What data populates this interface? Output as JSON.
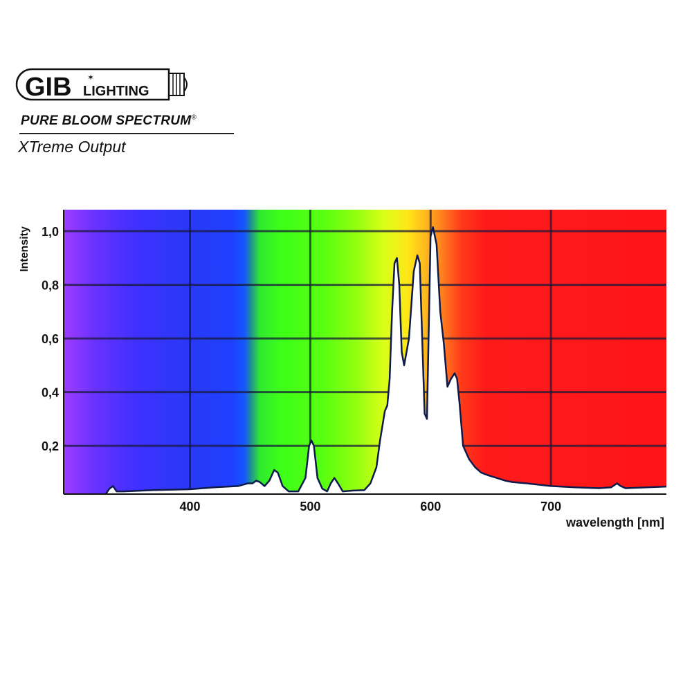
{
  "brand": {
    "logo_text_main": "GIB",
    "logo_text_secondary": "LIGHTING",
    "product_line": "PURE BLOOM SPECTRUM",
    "registered_mark": "®",
    "product_name": "XTreme Output"
  },
  "chart_data": {
    "type": "area",
    "title": "",
    "xlabel": "wavelength [nm]",
    "ylabel": "Intensity",
    "xlim": [
      295,
      796
    ],
    "ylim": [
      0.02,
      1.08
    ],
    "x_ticks": [
      400,
      500,
      600,
      700
    ],
    "x_tick_labels": [
      "400",
      "500",
      "600",
      "700"
    ],
    "y_ticks": [
      0.2,
      0.4,
      0.6,
      0.8,
      1.0
    ],
    "y_tick_labels": [
      "0,2",
      "0,4",
      "0,6",
      "0,8",
      "1,0"
    ],
    "grid": true,
    "background": "visible-spectrum color gradient",
    "fill_color": "#ffffff",
    "line_color": "#0d1a4a",
    "grid_color": "#1a1a3a",
    "series": [
      {
        "x": [
          330,
          333,
          336,
          339,
          345,
          370,
          400,
          420,
          440,
          448,
          452,
          455,
          458,
          462,
          466,
          470,
          473,
          477,
          482,
          490,
          496,
          499,
          501,
          503,
          506,
          510,
          514,
          517,
          520,
          523,
          527,
          535,
          545,
          550,
          555,
          558,
          562,
          564,
          566,
          568,
          570,
          572,
          574,
          576,
          578,
          582,
          586,
          589,
          591,
          593,
          595,
          597,
          599,
          600,
          602,
          605,
          608,
          611,
          614,
          617,
          620,
          622,
          624,
          627,
          632,
          637,
          642,
          648,
          655,
          662,
          668,
          680,
          700,
          720,
          740,
          750,
          755,
          758,
          762,
          780,
          796
        ],
        "y": [
          0.02,
          0.04,
          0.05,
          0.03,
          0.03,
          0.035,
          0.038,
          0.045,
          0.05,
          0.06,
          0.06,
          0.07,
          0.065,
          0.05,
          0.07,
          0.11,
          0.1,
          0.05,
          0.03,
          0.03,
          0.08,
          0.2,
          0.22,
          0.2,
          0.08,
          0.04,
          0.03,
          0.06,
          0.08,
          0.06,
          0.03,
          0.033,
          0.035,
          0.06,
          0.12,
          0.22,
          0.33,
          0.35,
          0.45,
          0.7,
          0.88,
          0.9,
          0.8,
          0.55,
          0.5,
          0.6,
          0.85,
          0.91,
          0.88,
          0.6,
          0.32,
          0.3,
          0.75,
          0.98,
          1.015,
          0.95,
          0.7,
          0.58,
          0.42,
          0.45,
          0.47,
          0.45,
          0.36,
          0.2,
          0.15,
          0.12,
          0.1,
          0.09,
          0.08,
          0.07,
          0.065,
          0.06,
          0.05,
          0.045,
          0.042,
          0.045,
          0.06,
          0.05,
          0.042,
          0.045,
          0.048
        ]
      }
    ]
  }
}
